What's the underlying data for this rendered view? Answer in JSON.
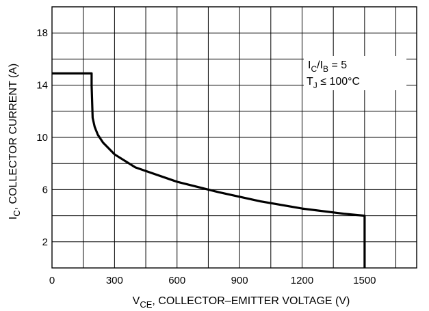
{
  "chart_data": {
    "type": "line",
    "xlabel_main": "V",
    "xlabel_sub": "CE",
    "xlabel_rest": ", COLLECTOR–EMITTER VOLTAGE (V)",
    "ylabel_main": "I",
    "ylabel_sub": "C",
    "ylabel_rest": ", COLLECTOR CURRENT (A)",
    "xlim": [
      0,
      1750
    ],
    "ylim": [
      0,
      20
    ],
    "x_ticks": [
      0,
      300,
      600,
      900,
      1200,
      1500
    ],
    "x_tick_labels": [
      "0",
      "300",
      "600",
      "900",
      "1200",
      "1500"
    ],
    "y_ticks": [
      2,
      6,
      10,
      14,
      18
    ],
    "y_tick_labels": [
      "2",
      "6",
      "10",
      "14",
      "18"
    ],
    "x_grid_step": 150,
    "y_grid_step": 2,
    "grid": true,
    "annotation": {
      "line1_main": "I",
      "line1_sub": "C",
      "line1_mid": "/I",
      "line1_sub2": "B",
      "line1_rest": " = 5",
      "line2_main": "T",
      "line2_sub": "J",
      "line2_rest": " ≤ 100°C"
    },
    "series": [
      {
        "x": [
          0,
          190,
          190,
          195,
          205,
          220,
          245,
          300,
          400,
          600,
          800,
          1000,
          1200,
          1400,
          1500,
          1500
        ],
        "y": [
          14.9,
          14.9,
          14.0,
          11.5,
          10.8,
          10.2,
          9.6,
          8.7,
          7.7,
          6.6,
          5.8,
          5.1,
          4.55,
          4.15,
          4.0,
          0
        ]
      }
    ]
  }
}
